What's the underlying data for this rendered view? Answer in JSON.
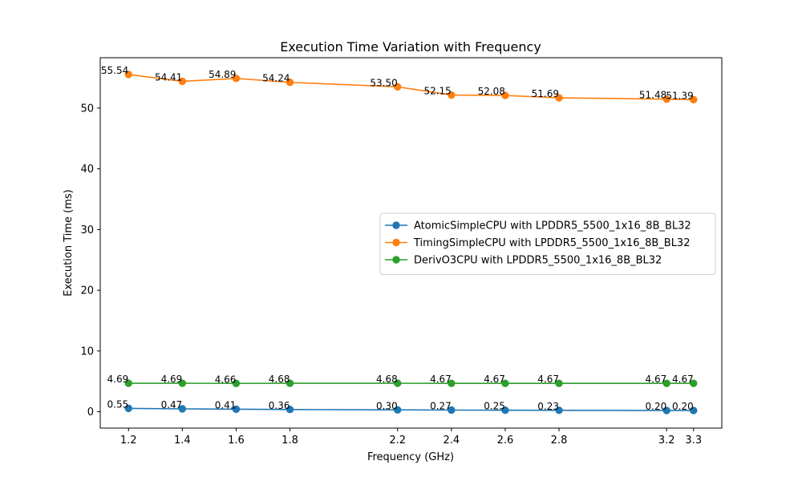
{
  "chart_data": {
    "type": "line",
    "title": "Execution Time Variation with Frequency",
    "xlabel": "Frequency (GHz)",
    "ylabel": "Execution Time (ms)",
    "x": [
      1.2,
      1.4,
      1.6,
      1.8,
      2.2,
      2.4,
      2.6,
      2.8,
      3.2,
      3.3
    ],
    "x_tick_labels": [
      "1.2",
      "1.4",
      "1.6",
      "1.8",
      "2.2",
      "2.4",
      "2.6",
      "2.8",
      "3.2",
      "3.3"
    ],
    "xlim": [
      1.095,
      3.405
    ],
    "ylim": [
      -2.7,
      58.3
    ],
    "y_ticks": [
      0,
      10,
      20,
      30,
      40,
      50
    ],
    "y_tick_labels": [
      "0",
      "10",
      "20",
      "30",
      "40",
      "50"
    ],
    "grid": false,
    "legend_position": "center-right",
    "series": [
      {
        "name": "AtomicSimpleCPU with LPDDR5_5500_1x16_8B_BL32",
        "color": "#1f77b4",
        "values": [
          0.55,
          0.47,
          0.41,
          0.36,
          0.3,
          0.27,
          0.25,
          0.23,
          0.2,
          0.2
        ],
        "labels": [
          "0.55",
          "0.47",
          "0.41",
          "0.36",
          "0.30",
          "0.27",
          "0.25",
          "0.23",
          "0.20",
          "0.20"
        ]
      },
      {
        "name": "TimingSimpleCPU with LPDDR5_5500_1x16_8B_BL32",
        "color": "#ff7f0e",
        "values": [
          55.54,
          54.41,
          54.89,
          54.24,
          53.5,
          52.15,
          52.08,
          51.69,
          51.48,
          51.39
        ],
        "labels": [
          "55.54",
          "54.41",
          "54.89",
          "54.24",
          "53.50",
          "52.15",
          "52.08",
          "51.69",
          "51.48",
          "51.39"
        ]
      },
      {
        "name": "DerivO3CPU with LPDDR5_5500_1x16_8B_BL32",
        "color": "#2ca02c",
        "values": [
          4.69,
          4.69,
          4.66,
          4.68,
          4.68,
          4.67,
          4.67,
          4.67,
          4.67,
          4.67
        ],
        "labels": [
          "4.69",
          "4.69",
          "4.66",
          "4.68",
          "4.68",
          "4.67",
          "4.67",
          "4.67",
          "4.67",
          "4.67"
        ]
      }
    ]
  }
}
